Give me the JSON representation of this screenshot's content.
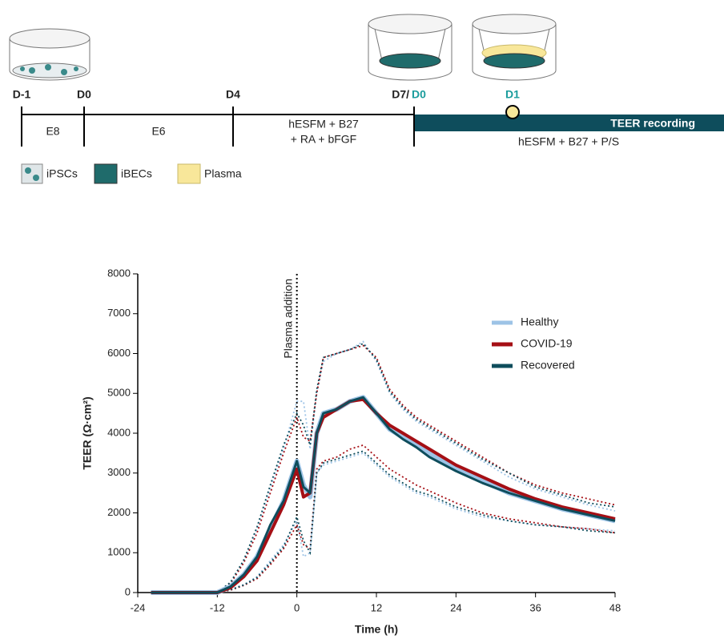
{
  "timeline": {
    "days": [
      "D-1",
      "D0",
      "D4",
      "D7/",
      "D0",
      "D1"
    ],
    "media": [
      "E8",
      "E6",
      "hESFM + B27",
      "+ RA + bFGF",
      "hESFM + B27 + P/S"
    ],
    "bar_label": "TEER recording",
    "legend": [
      "iPSCs",
      "iBECs",
      "Plasma"
    ]
  },
  "chart_data": {
    "type": "line",
    "x_label": "Time (h)",
    "y_label": "TEER (Ω·cm²)",
    "annotation": {
      "text": "Plasma addition",
      "x": 0
    },
    "xlim": [
      -24,
      48
    ],
    "xticks": [
      -24,
      -12,
      0,
      12,
      24,
      36,
      48
    ],
    "ylim": [
      0,
      8000
    ],
    "yticks": [
      0,
      1000,
      2000,
      3000,
      4000,
      5000,
      6000,
      7000,
      8000
    ],
    "legend": "upper right",
    "x": [
      -22,
      -12,
      -10,
      -8,
      -6,
      -4,
      -2,
      0,
      1,
      2,
      3,
      4,
      6,
      8,
      10,
      12,
      14,
      16,
      18,
      20,
      24,
      28,
      32,
      36,
      40,
      44,
      48
    ],
    "series": [
      {
        "name": "Healthy",
        "color": "#9dc3e6",
        "values": [
          0,
          0,
          150,
          450,
          900,
          1600,
          2300,
          3300,
          2700,
          2400,
          4000,
          4500,
          4600,
          4800,
          4900,
          4500,
          4100,
          3900,
          3700,
          3500,
          3100,
          2800,
          2500,
          2300,
          2100,
          1950,
          1800
        ],
        "upper": [
          0,
          0,
          250,
          800,
          1600,
          2600,
          3600,
          4800,
          4800,
          3600,
          5000,
          5800,
          6000,
          6100,
          6300,
          5800,
          5000,
          4600,
          4300,
          4100,
          3700,
          3300,
          2900,
          2600,
          2400,
          2200,
          2050
        ],
        "lower": [
          0,
          0,
          80,
          200,
          400,
          800,
          1200,
          1800,
          900,
          1000,
          3000,
          3200,
          3300,
          3400,
          3500,
          3200,
          2900,
          2700,
          2500,
          2400,
          2100,
          1900,
          1800,
          1700,
          1650,
          1600,
          1550
        ]
      },
      {
        "name": "COVID-19",
        "color": "#a50f15",
        "values": [
          0,
          0,
          120,
          400,
          800,
          1500,
          2200,
          3100,
          2400,
          2500,
          4000,
          4400,
          4600,
          4800,
          4850,
          4500,
          4200,
          4000,
          3800,
          3600,
          3200,
          2900,
          2600,
          2350,
          2150,
          2000,
          1850
        ],
        "upper": [
          0,
          0,
          230,
          750,
          1500,
          2500,
          3500,
          4400,
          3900,
          3800,
          5000,
          5900,
          6000,
          6100,
          6200,
          5900,
          5100,
          4700,
          4400,
          4200,
          3800,
          3400,
          3000,
          2700,
          2500,
          2350,
          2200
        ],
        "lower": [
          0,
          0,
          60,
          180,
          350,
          700,
          1100,
          1700,
          1200,
          1100,
          3100,
          3300,
          3400,
          3600,
          3700,
          3400,
          3100,
          2900,
          2700,
          2550,
          2250,
          2000,
          1850,
          1750,
          1650,
          1600,
          1500
        ]
      },
      {
        "name": "Recovered",
        "color": "#0e4d5c",
        "values": [
          0,
          0,
          150,
          450,
          900,
          1700,
          2300,
          3300,
          2650,
          2500,
          4000,
          4500,
          4600,
          4800,
          4900,
          4500,
          4100,
          3850,
          3650,
          3400,
          3050,
          2750,
          2500,
          2300,
          2100,
          1950,
          1800
        ],
        "upper": [
          0,
          0,
          260,
          820,
          1650,
          2700,
          3700,
          4500,
          4200,
          3700,
          5100,
          5900,
          6000,
          6100,
          6250,
          5850,
          5050,
          4650,
          4350,
          4150,
          3750,
          3350,
          3000,
          2650,
          2450,
          2250,
          2150
        ],
        "lower": [
          0,
          0,
          70,
          190,
          380,
          750,
          1150,
          1900,
          1300,
          1000,
          3000,
          3250,
          3350,
          3450,
          3550,
          3250,
          2950,
          2750,
          2550,
          2450,
          2150,
          1950,
          1800,
          1700,
          1650,
          1550,
          1500
        ]
      }
    ]
  }
}
